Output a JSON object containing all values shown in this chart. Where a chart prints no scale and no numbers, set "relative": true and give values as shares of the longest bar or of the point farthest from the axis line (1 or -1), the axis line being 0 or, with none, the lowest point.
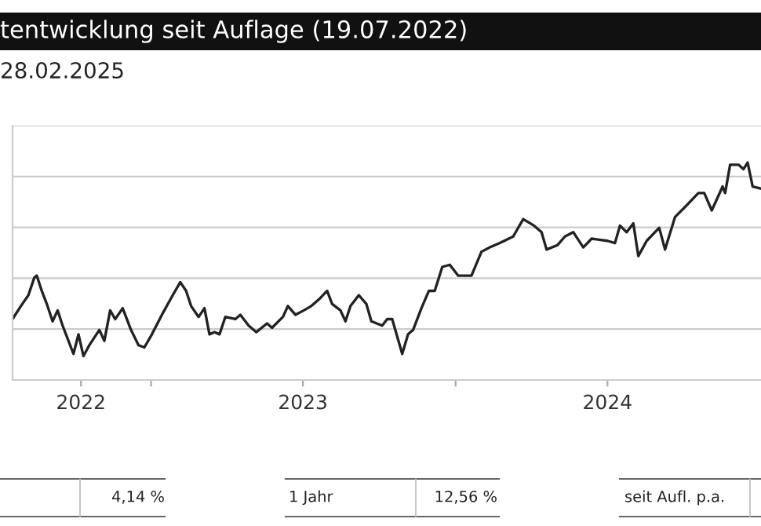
{
  "chart_data": {
    "type": "line",
    "title": "tentwicklung seit Auflage (19.07.2022)",
    "subtitle": "28.02.2025",
    "relative": true,
    "grid": "y",
    "legend": false,
    "marker": "none",
    "line_style": "solid",
    "xlim": [
      "2022-07-19",
      "2025-01-01"
    ],
    "xticks": [
      {
        "value": "2022-10-09",
        "label": "2022"
      },
      {
        "value": "2023-01-01",
        "label": null
      },
      {
        "value": "2023-07-02",
        "label": "2023"
      },
      {
        "value": "2024-01-01",
        "label": null
      },
      {
        "value": "2024-07-01",
        "label": "2024"
      }
    ],
    "annotations": [
      "4,14 %",
      "1 Jahr",
      "12,56 %",
      "seit Aufl. p.a."
    ],
    "series": [
      {
        "color": "#222222",
        "x": [
          "2022-07-19",
          "2022-07-29",
          "2022-08-07",
          "2022-08-14",
          "2022-08-17",
          "2022-08-23",
          "2022-08-29",
          "2022-09-05",
          "2022-09-11",
          "2022-09-17",
          "2022-09-23",
          "2022-09-30",
          "2022-10-06",
          "2022-10-12",
          "2022-10-19",
          "2022-10-31",
          "2022-11-06",
          "2022-11-13",
          "2022-11-19",
          "2022-11-28",
          "2022-12-08",
          "2022-12-17",
          "2022-12-24",
          "2023-01-02",
          "2023-01-14",
          "2023-01-27",
          "2023-02-05",
          "2023-02-12",
          "2023-02-18",
          "2023-02-27",
          "2023-03-06",
          "2023-03-12",
          "2023-03-18",
          "2023-03-24",
          "2023-03-31",
          "2023-04-12",
          "2023-04-18",
          "2023-04-28",
          "2023-05-07",
          "2023-05-20",
          "2023-05-26",
          "2023-06-08",
          "2023-06-14",
          "2023-06-23",
          "2023-07-03",
          "2023-07-12",
          "2023-07-21",
          "2023-07-31",
          "2023-08-06",
          "2023-08-16",
          "2023-08-22",
          "2023-08-28",
          "2023-09-07",
          "2023-09-16",
          "2023-09-22",
          "2023-10-05",
          "2023-10-11",
          "2023-10-17",
          "2023-10-29",
          "2023-11-05",
          "2023-11-11",
          "2023-11-21",
          "2023-11-30",
          "2023-12-07",
          "2023-12-16",
          "2023-12-25",
          "2024-01-04",
          "2024-01-20",
          "2024-02-01",
          "2024-02-11",
          "2024-02-23",
          "2024-03-10",
          "2024-03-22",
          "2024-04-04",
          "2024-04-13",
          "2024-04-19",
          "2024-05-02",
          "2024-05-11",
          "2024-05-21",
          "2024-06-02",
          "2024-06-12",
          "2024-07-01",
          "2024-07-10",
          "2024-07-16",
          "2024-07-24",
          "2024-08-01",
          "2024-08-07",
          "2024-08-17",
          "2024-09-01",
          "2024-09-08",
          "2024-09-20",
          "2024-10-03",
          "2024-10-18",
          "2024-10-25",
          "2024-11-03",
          "2024-11-16",
          "2024-11-19",
          "2024-11-25",
          "2024-12-05",
          "2024-12-11",
          "2024-12-16",
          "2024-12-22",
          "2025-01-01"
        ],
        "values": [
          0.28,
          0.34,
          0.39,
          0.47,
          0.48,
          0.41,
          0.35,
          0.27,
          0.32,
          0.25,
          0.19,
          0.12,
          0.21,
          0.11,
          0.16,
          0.23,
          0.18,
          0.32,
          0.28,
          0.33,
          0.23,
          0.16,
          0.15,
          0.21,
          0.3,
          0.39,
          0.45,
          0.41,
          0.34,
          0.29,
          0.33,
          0.21,
          0.22,
          0.21,
          0.29,
          0.28,
          0.3,
          0.25,
          0.22,
          0.26,
          0.24,
          0.29,
          0.34,
          0.3,
          0.32,
          0.34,
          0.37,
          0.41,
          0.35,
          0.32,
          0.27,
          0.34,
          0.39,
          0.35,
          0.27,
          0.25,
          0.28,
          0.28,
          0.12,
          0.21,
          0.23,
          0.33,
          0.41,
          0.41,
          0.52,
          0.53,
          0.48,
          0.48,
          0.59,
          0.61,
          0.63,
          0.66,
          0.74,
          0.71,
          0.68,
          0.6,
          0.62,
          0.66,
          0.68,
          0.61,
          0.65,
          0.64,
          0.63,
          0.71,
          0.68,
          0.72,
          0.57,
          0.64,
          0.7,
          0.6,
          0.75,
          0.8,
          0.86,
          0.86,
          0.78,
          0.89,
          0.86,
          0.99,
          0.99,
          0.97,
          1.0,
          0.89,
          0.88
        ]
      }
    ]
  }
}
